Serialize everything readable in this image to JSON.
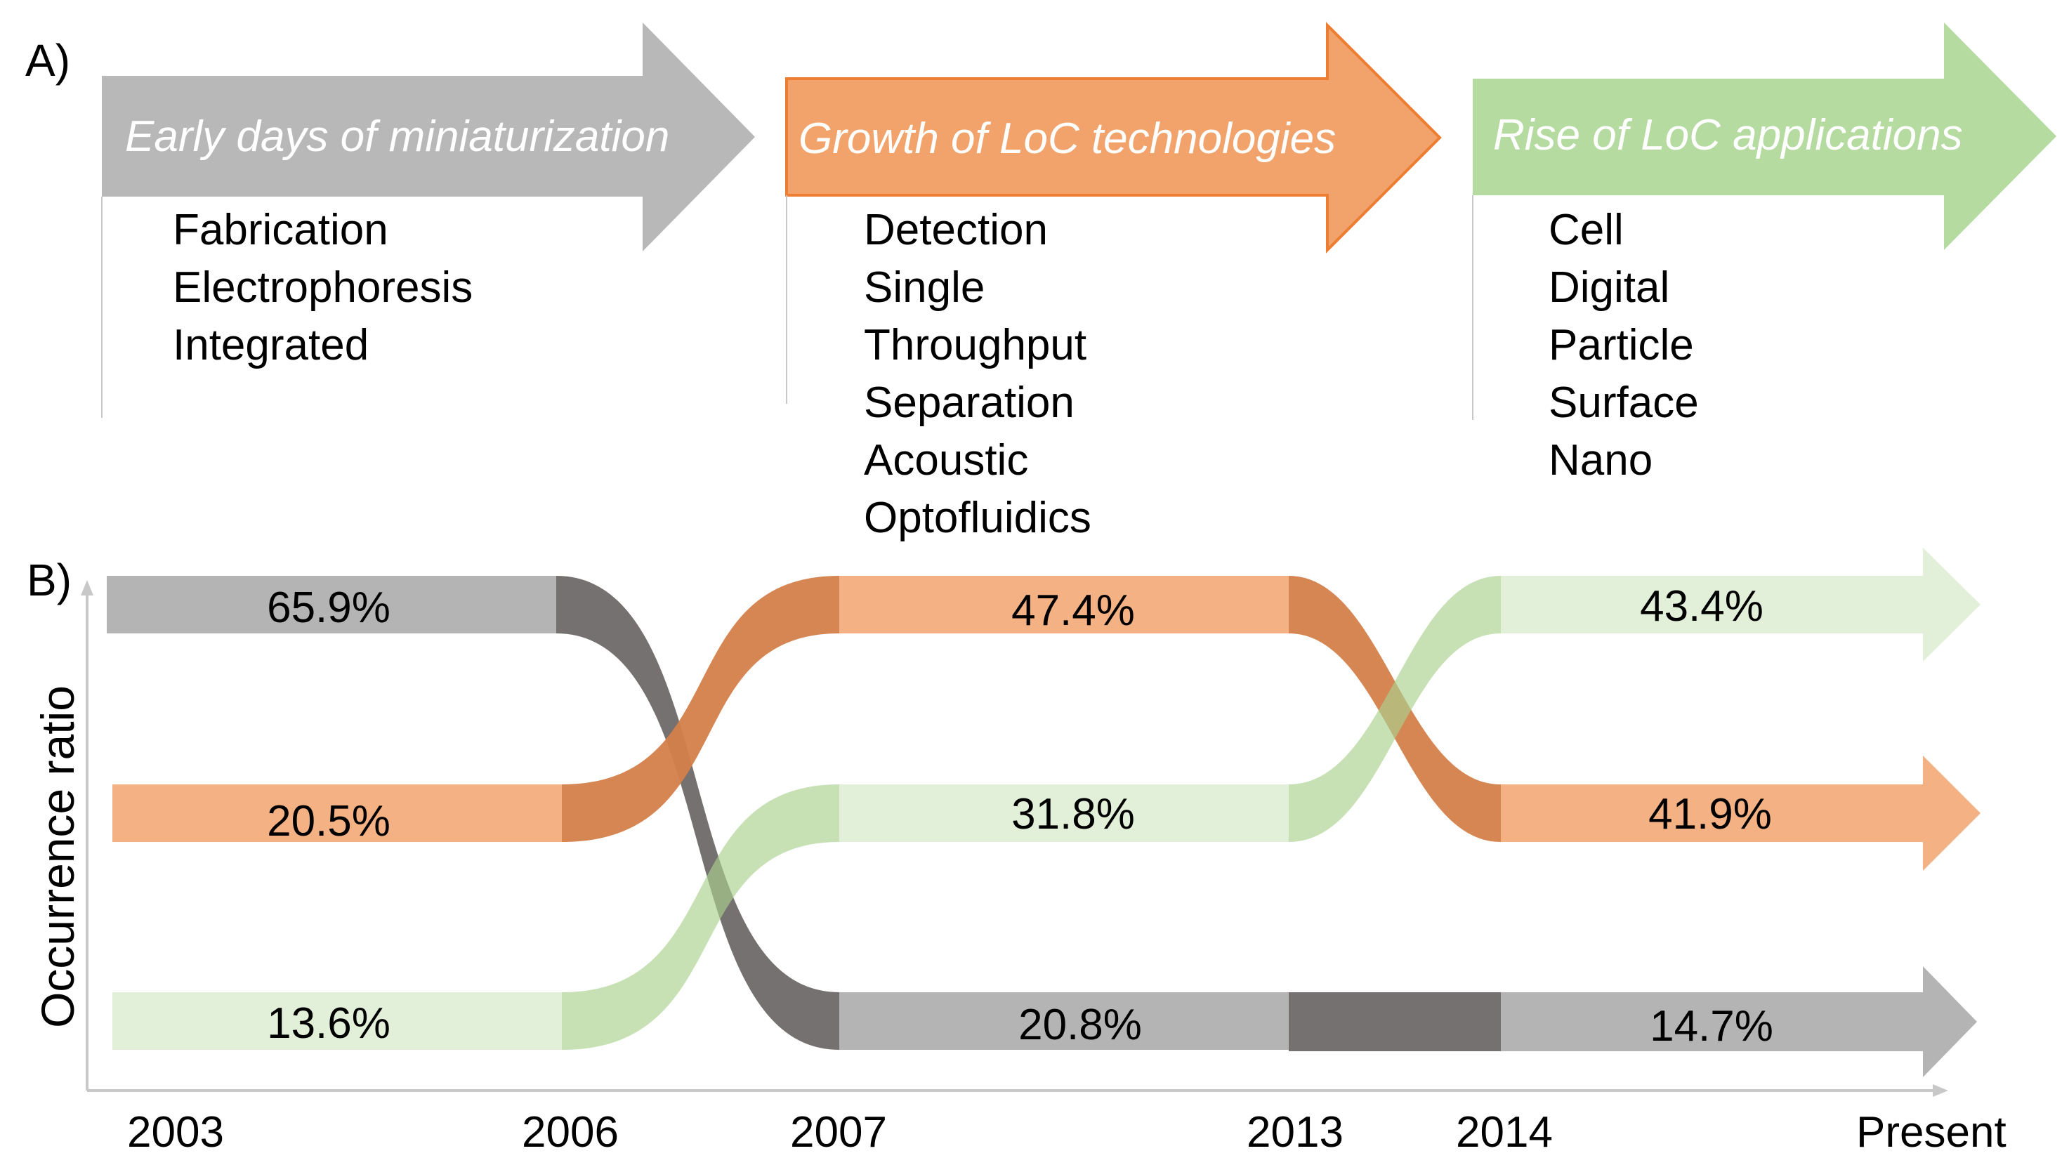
{
  "panel_a": {
    "label": "A)",
    "phases": [
      {
        "title": "Early days of miniaturization",
        "color": "#b8b8b8",
        "keywords": [
          "Fabrication",
          "Electrophoresis",
          "Integrated"
        ]
      },
      {
        "title": "Growth of LoC technologies",
        "color": "#f2a36c",
        "border": "#ed7d31",
        "keywords": [
          "Detection",
          "Single",
          "Throughput",
          "Separation",
          "Acoustic",
          "Optofluidics"
        ]
      },
      {
        "title": "Rise of LoC applications",
        "color": "#b5dba0",
        "keywords": [
          "Cell",
          "Digital",
          "Particle",
          "Surface",
          "Nano"
        ]
      }
    ]
  },
  "panel_b": {
    "label": "B)",
    "y_axis_label": "Occurrence ratio",
    "x_ticks": [
      "2003",
      "2006",
      "2007",
      "2013",
      "2014",
      "Present"
    ],
    "streams": [
      {
        "name": "miniaturization",
        "color_light": "#b4b4b4",
        "color_dark": "#767171",
        "values": [
          "65.9%",
          "20.8%",
          "14.7%"
        ]
      },
      {
        "name": "technologies",
        "color_light": "#f4b183",
        "color_dark": "#d4804a",
        "values": [
          "20.5%",
          "47.4%",
          "41.9%"
        ]
      },
      {
        "name": "applications",
        "color_light": "#e2f0d9",
        "color_dark": "#a9d18e",
        "values": [
          "13.6%",
          "31.8%",
          "43.4%"
        ]
      }
    ]
  }
}
